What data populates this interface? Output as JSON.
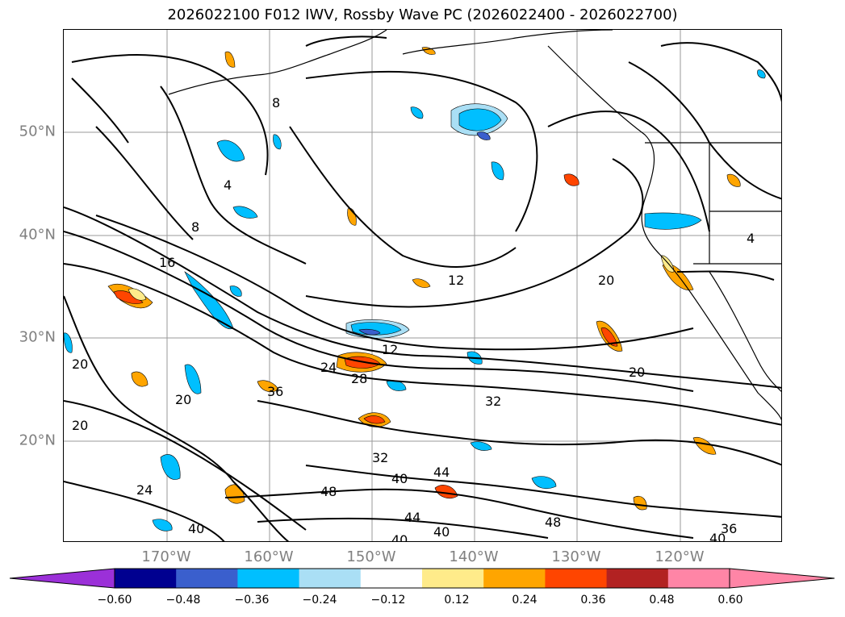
{
  "title": "2026022100 F012 IWV, Rossby Wave PC (2026022400 - 2026022700)",
  "latitude_labels": [
    "50°N",
    "40°N",
    "30°N",
    "20°N"
  ],
  "longitude_labels": [
    "170°W",
    "160°W",
    "150°W",
    "140°W",
    "130°W",
    "120°W"
  ],
  "colorbar": {
    "ticks": [
      "−0.60",
      "−0.48",
      "−0.36",
      "−0.24",
      "−0.12",
      "0.12",
      "0.24",
      "0.36",
      "0.48",
      "0.60"
    ],
    "colors": [
      "#9b30d8",
      "#000090",
      "#3a5fcd",
      "#00bfff",
      "#aadff5",
      "#ffffff",
      "#ffeb8a",
      "#ffa500",
      "#ff4500",
      "#b22222",
      "#ff85a6",
      "#ff85a6"
    ],
    "under_color": "#9b30d8",
    "over_color": "#ff85a6"
  },
  "contour_labels": [
    "8",
    "4",
    "8",
    "16",
    "12",
    "20",
    "12",
    "24",
    "28",
    "36",
    "32",
    "20",
    "20",
    "32",
    "40",
    "44",
    "48",
    "44",
    "40",
    "40",
    "48",
    "36",
    "40",
    "24",
    "40",
    "20",
    "4",
    "20"
  ],
  "coastline_color": "#000000",
  "contour_color": "#000000"
}
